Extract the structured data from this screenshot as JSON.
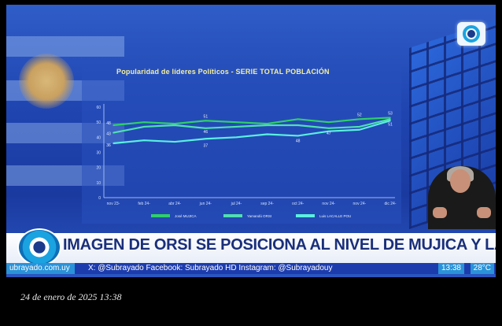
{
  "screen": {
    "headline": "IMAGEN DE ORSI SE POSICIONA AL NIVEL DE MUJICA Y LACALLE",
    "ticker": {
      "site": "ubrayado.com.uy",
      "social": "X: @Subrayado   Facebook: Subrayado HD   Instagram: @Subrayadouy",
      "time": "13:38",
      "temperature": "28°C"
    },
    "channel_logo_icon": "subrayado-logo-icon",
    "interpreter_label": "sign-language-interpreter"
  },
  "chart_data": {
    "type": "line",
    "title": "Popularidad de líderes Políticos - SERIE TOTAL POBLACIÓN",
    "categories": [
      "nov 23-",
      "feb 24-",
      "abr 24-",
      "jun 24-",
      "jul 24-",
      "sep 24-",
      "oct 24-",
      "nov 24-",
      "nov 24-",
      "dic 24-"
    ],
    "ylim": [
      0,
      60
    ],
    "yticks": [
      "0",
      "10",
      "20",
      "30",
      "40",
      "50",
      "60"
    ],
    "series": [
      {
        "name": "José MUJICA",
        "color": "#2fd06a",
        "values": [
          48,
          50,
          49,
          51,
          50,
          49,
          52,
          50,
          52,
          53
        ]
      },
      {
        "name": "Yamandú ORSI",
        "color": "#4fe0b0",
        "values": [
          43,
          47,
          48,
          46,
          47,
          48,
          48,
          46,
          47,
          52
        ]
      },
      {
        "name": "Luis LACALLE POU",
        "color": "#5af0e0",
        "values": [
          36,
          38,
          37,
          39,
          40,
          42,
          41,
          44,
          45,
          51
        ]
      }
    ],
    "data_labels": {
      "left": [
        "48",
        "43",
        "36"
      ],
      "mid_top": "51",
      "mid_low": "37",
      "mid_mid": "46",
      "right_top": [
        "53",
        "52"
      ],
      "right_low": [
        "51",
        "48",
        "47"
      ]
    },
    "grid": true,
    "legend": "bottom"
  },
  "photo": {
    "timestamp": "24 de enero de 2025 13:38"
  }
}
